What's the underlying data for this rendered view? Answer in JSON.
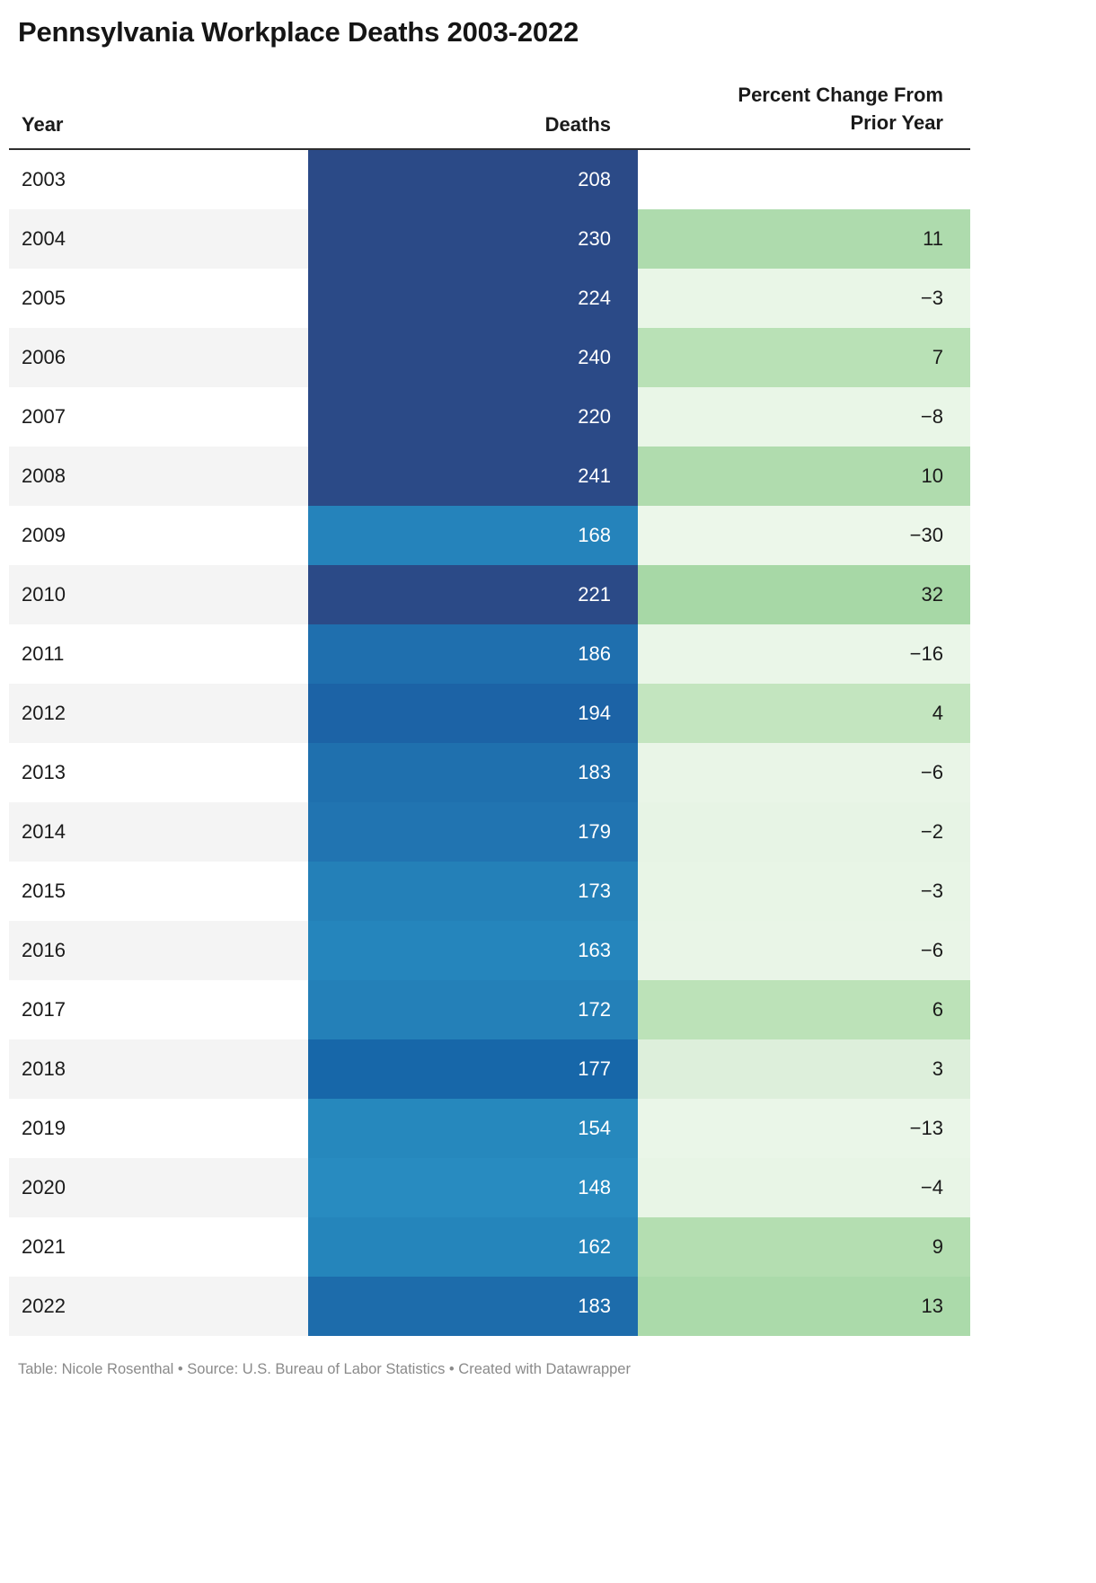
{
  "title": "Pennsylvania Workplace Deaths 2003-2022",
  "table": {
    "columns": [
      "Year",
      "Deaths",
      "Percent Change From Prior Year"
    ],
    "rows": [
      {
        "year": "2003",
        "deaths": "208",
        "pct": "",
        "deaths_color": "#2b4a87",
        "pct_color": ""
      },
      {
        "year": "2004",
        "deaths": "230",
        "pct": "11",
        "deaths_color": "#2b4a87",
        "pct_color": "#aedbad"
      },
      {
        "year": "2005",
        "deaths": "224",
        "pct": "−3",
        "deaths_color": "#2b4a87",
        "pct_color": "#e9f6e7"
      },
      {
        "year": "2006",
        "deaths": "240",
        "pct": "7",
        "deaths_color": "#2b4a87",
        "pct_color": "#b9e1b6"
      },
      {
        "year": "2007",
        "deaths": "220",
        "pct": "−8",
        "deaths_color": "#2b4a87",
        "pct_color": "#e9f6e7"
      },
      {
        "year": "2008",
        "deaths": "241",
        "pct": "10",
        "deaths_color": "#2b4a87",
        "pct_color": "#b0dcae"
      },
      {
        "year": "2009",
        "deaths": "168",
        "pct": "−30",
        "deaths_color": "#2583bb",
        "pct_color": "#ecf7ea"
      },
      {
        "year": "2010",
        "deaths": "221",
        "pct": "32",
        "deaths_color": "#2b4a87",
        "pct_color": "#a7d8a6"
      },
      {
        "year": "2011",
        "deaths": "186",
        "pct": "−16",
        "deaths_color": "#1f6fae",
        "pct_color": "#eaf6e8"
      },
      {
        "year": "2012",
        "deaths": "194",
        "pct": "4",
        "deaths_color": "#1c63a6",
        "pct_color": "#c3e5bf"
      },
      {
        "year": "2013",
        "deaths": "183",
        "pct": "−6",
        "deaths_color": "#1f70ae",
        "pct_color": "#e9f5e7"
      },
      {
        "year": "2014",
        "deaths": "179",
        "pct": "−2",
        "deaths_color": "#2174b1",
        "pct_color": "#e7f4e5"
      },
      {
        "year": "2015",
        "deaths": "173",
        "pct": "−3",
        "deaths_color": "#2480b8",
        "pct_color": "#e8f5e6"
      },
      {
        "year": "2016",
        "deaths": "163",
        "pct": "−6",
        "deaths_color": "#2585bc",
        "pct_color": "#e9f5e7"
      },
      {
        "year": "2017",
        "deaths": "172",
        "pct": "6",
        "deaths_color": "#2480b8",
        "pct_color": "#bce2b8"
      },
      {
        "year": "2018",
        "deaths": "177",
        "pct": "3",
        "deaths_color": "#1767a9",
        "pct_color": "#ddefdb"
      },
      {
        "year": "2019",
        "deaths": "154",
        "pct": "−13",
        "deaths_color": "#2688bd",
        "pct_color": "#eaf6e8"
      },
      {
        "year": "2020",
        "deaths": "148",
        "pct": "−4",
        "deaths_color": "#288bc0",
        "pct_color": "#e8f5e6"
      },
      {
        "year": "2021",
        "deaths": "162",
        "pct": "9",
        "deaths_color": "#2585bb",
        "pct_color": "#b4deb1"
      },
      {
        "year": "2022",
        "deaths": "183",
        "pct": "13",
        "deaths_color": "#1d6cab",
        "pct_color": "#abdaaa"
      }
    ]
  },
  "footer": "Table: Nicole Rosenthal • Source: U.S. Bureau of Labor Statistics • Created with Datawrapper",
  "chart_data": {
    "type": "table",
    "title": "Pennsylvania Workplace Deaths 2003-2022",
    "columns": [
      "Year",
      "Deaths",
      "Percent Change From Prior Year"
    ],
    "years": [
      2003,
      2004,
      2005,
      2006,
      2007,
      2008,
      2009,
      2010,
      2011,
      2012,
      2013,
      2014,
      2015,
      2016,
      2017,
      2018,
      2019,
      2020,
      2021,
      2022
    ],
    "deaths": [
      208,
      230,
      224,
      240,
      220,
      241,
      168,
      221,
      186,
      194,
      183,
      179,
      173,
      163,
      172,
      177,
      154,
      148,
      162,
      183
    ],
    "percent_change_from_prior_year": [
      null,
      11,
      -3,
      7,
      -8,
      10,
      -30,
      32,
      -16,
      4,
      -6,
      -2,
      -3,
      -6,
      6,
      3,
      -13,
      -4,
      9,
      13
    ],
    "heatmap": {
      "deaths_column_palette": "blue, darker = more deaths",
      "percent_column_palette": "green, darker = larger increase"
    },
    "credit": "Table: Nicole Rosenthal",
    "source": "U.S. Bureau of Labor Statistics",
    "tool": "Created with Datawrapper"
  }
}
